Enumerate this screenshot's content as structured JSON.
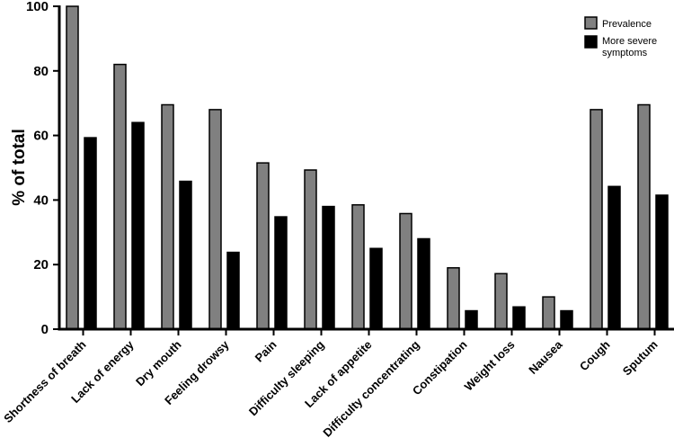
{
  "chart_data": {
    "type": "bar",
    "title": "",
    "xlabel": "",
    "ylabel": "% of total",
    "ylim": [
      0,
      100
    ],
    "yticks": [
      "0",
      "20",
      "40",
      "60",
      "80",
      "100"
    ],
    "grid": false,
    "legend_position": "top-right",
    "categories": [
      "Shortness of breath",
      "Lack of energy",
      "Dry mouth",
      "Feeling drowsy",
      "Pain",
      "Difficulty sleeping",
      "Lack of appetite",
      "Difficulty concentrating",
      "Constipation",
      "Weight loss",
      "Nausea",
      "Cough",
      "Sputum"
    ],
    "series": [
      {
        "name": "Prevalence",
        "color": "#808080",
        "values": [
          100,
          82,
          69.5,
          68,
          51.5,
          49.3,
          38.5,
          35.8,
          19,
          17.2,
          10,
          68,
          69.5
        ]
      },
      {
        "name": "More severe symptoms",
        "color": "#000000",
        "values": [
          59.3,
          64,
          45.8,
          23.8,
          34.8,
          38,
          25,
          28,
          5.7,
          6.9,
          5.7,
          44.2,
          41.5
        ]
      }
    ]
  }
}
